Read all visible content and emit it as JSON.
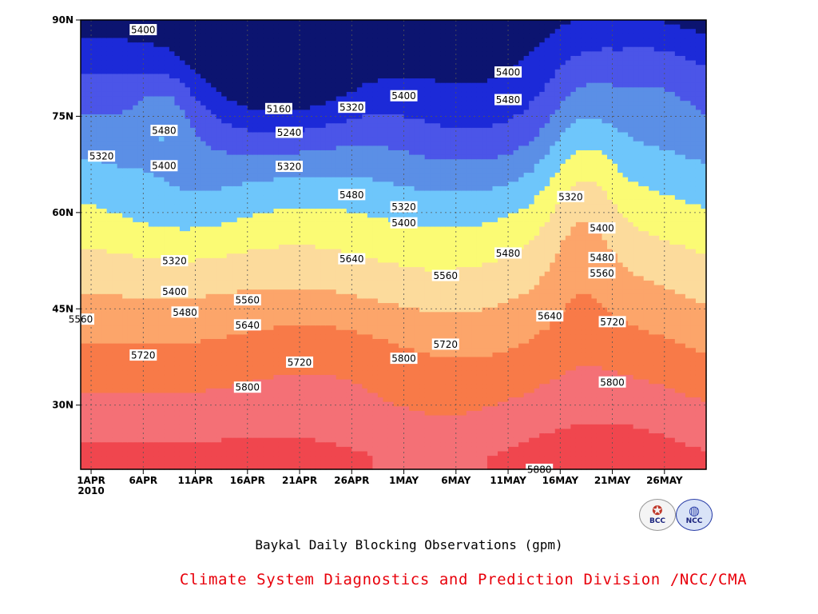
{
  "chart_data": {
    "type": "heatmap",
    "title": "Baykal Daily Blocking Observations (gpm)",
    "xlabel": "",
    "ylabel": "",
    "x_ticks": [
      "1APR",
      "6APR",
      "11APR",
      "16APR",
      "21APR",
      "26APR",
      "1MAY",
      "6MAY",
      "11MAY",
      "16MAY",
      "21MAY",
      "26MAY"
    ],
    "x_year_label": "2010",
    "y_ticks": [
      "30N",
      "45N",
      "60N",
      "75N",
      "90N"
    ],
    "xlim": [
      "2010-03-31",
      "2010-05-30"
    ],
    "ylim": [
      20,
      90
    ],
    "contour_levels": [
      5160,
      5240,
      5320,
      5400,
      5480,
      5560,
      5640,
      5720,
      5800,
      5880
    ],
    "level_colors": [
      "#0c1470",
      "#1c2ad8",
      "#4b55e8",
      "#5b8fe6",
      "#6ec6fb",
      "#fbfb74",
      "#fcdb9c",
      "#fca56a",
      "#f87a48",
      "#f47076",
      "#f0464e"
    ],
    "contour_labels": [
      {
        "text": "5400",
        "date": "2010-04-06",
        "lat": 88.5
      },
      {
        "text": "5480",
        "date": "2010-04-08",
        "lat": 72.8
      },
      {
        "text": "5320",
        "date": "2010-04-02",
        "lat": 68.8
      },
      {
        "text": "5400",
        "date": "2010-04-08",
        "lat": 67.3
      },
      {
        "text": "5160",
        "date": "2010-04-19",
        "lat": 76.2
      },
      {
        "text": "5240",
        "date": "2010-04-20",
        "lat": 72.5
      },
      {
        "text": "5320",
        "date": "2010-04-20",
        "lat": 67.2
      },
      {
        "text": "5320",
        "date": "2010-04-26",
        "lat": 76.4
      },
      {
        "text": "5400",
        "date": "2010-05-01",
        "lat": 78.2
      },
      {
        "text": "5480",
        "date": "2010-04-26",
        "lat": 62.8
      },
      {
        "text": "5320",
        "date": "2010-05-01",
        "lat": 60.9
      },
      {
        "text": "5400",
        "date": "2010-05-01",
        "lat": 58.4
      },
      {
        "text": "5400",
        "date": "2010-05-11",
        "lat": 81.9
      },
      {
        "text": "5480",
        "date": "2010-05-11",
        "lat": 77.6
      },
      {
        "text": "5480",
        "date": "2010-05-11",
        "lat": 53.7
      },
      {
        "text": "5320",
        "date": "2010-05-17",
        "lat": 62.5
      },
      {
        "text": "5400",
        "date": "2010-05-20",
        "lat": 57.6
      },
      {
        "text": "5480",
        "date": "2010-05-20",
        "lat": 53.0
      },
      {
        "text": "5560",
        "date": "2010-05-20",
        "lat": 50.6
      },
      {
        "text": "5640",
        "date": "2010-04-26",
        "lat": 52.8
      },
      {
        "text": "5560",
        "date": "2010-05-05",
        "lat": 50.2
      },
      {
        "text": "5640",
        "date": "2010-05-15",
        "lat": 43.9
      },
      {
        "text": "5720",
        "date": "2010-05-21",
        "lat": 43.0
      },
      {
        "text": "5720",
        "date": "2010-05-05",
        "lat": 39.5
      },
      {
        "text": "5800",
        "date": "2010-05-01",
        "lat": 37.3
      },
      {
        "text": "5800",
        "date": "2010-05-21",
        "lat": 33.6
      },
      {
        "text": "5880",
        "date": "2010-05-14",
        "lat": 20.0
      },
      {
        "text": "5560",
        "date": "2010-04-16",
        "lat": 46.4
      },
      {
        "text": "5640",
        "date": "2010-04-16",
        "lat": 42.5
      },
      {
        "text": "5720",
        "date": "2010-04-21",
        "lat": 36.7
      },
      {
        "text": "5800",
        "date": "2010-04-16",
        "lat": 32.8
      },
      {
        "text": "5720",
        "date": "2010-04-06",
        "lat": 37.8
      },
      {
        "text": "5400",
        "date": "2010-04-09",
        "lat": 47.7
      },
      {
        "text": "5480",
        "date": "2010-04-10",
        "lat": 44.5
      },
      {
        "text": "5320",
        "date": "2010-04-09",
        "lat": 52.5
      },
      {
        "text": "5560",
        "date": "2010-03-31",
        "lat": 43.4
      }
    ]
  },
  "footer": {
    "title": "Baykal Daily Blocking Observations (gpm)",
    "credit": "Climate System Diagnostics and Prediction Division /NCC/CMA",
    "logo_left": "BCC",
    "logo_right": "NCC"
  }
}
